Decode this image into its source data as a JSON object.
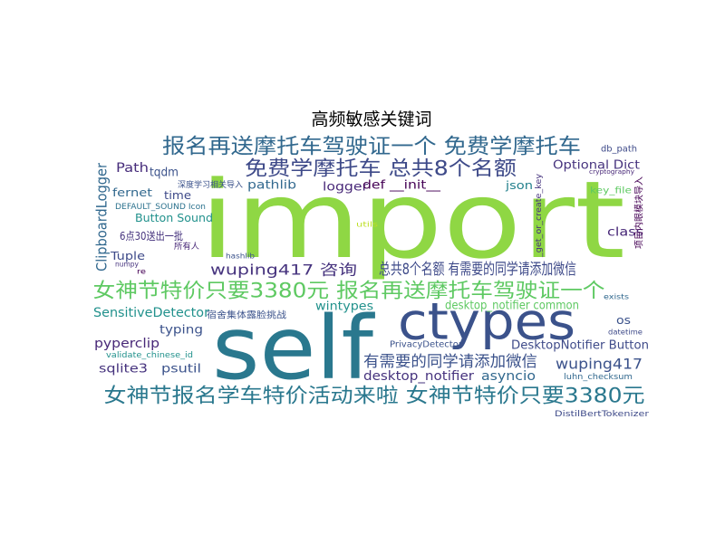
{
  "chart_data": {
    "type": "wordcloud",
    "title": "高频敏感关键词",
    "words": [
      {
        "text": "import",
        "color": "#8fd744"
      },
      {
        "text": "self",
        "color": "#2a788e"
      },
      {
        "text": "ctypes",
        "color": "#3b528b"
      },
      {
        "text": "报名再送摩托车驾驶证一个 免费学摩托车",
        "color": "#31688e"
      },
      {
        "text": "免费学摩托车 总共8个名额",
        "color": "#3e4a89"
      },
      {
        "text": "女神节特价只要3380元 报名再送摩托车驾驶证一个",
        "color": "#5ec962"
      },
      {
        "text": "女神节报名学车特价活动来啦 女神节特价只要3380元",
        "color": "#2a788e"
      },
      {
        "text": "有需要的同学请添加微信",
        "color": "#3b528b"
      },
      {
        "text": "总共8个名额 有需要的同学请添加微信",
        "color": "#3e4a89"
      },
      {
        "text": "wuping417 咨询",
        "color": "#46337e"
      },
      {
        "text": "ClipboardLogger",
        "color": "#31688e"
      },
      {
        "text": "SensitiveDetector",
        "color": "#21918c"
      },
      {
        "text": "DesktopNotifier Button",
        "color": "#3e4a89"
      },
      {
        "text": "desktop_notifier common",
        "color": "#5ec962"
      },
      {
        "text": "desktop_notifier",
        "color": "#46337e"
      },
      {
        "text": "asyncio",
        "color": "#31688e"
      },
      {
        "text": "wuping417",
        "color": "#3b528b"
      },
      {
        "text": "pyperclip",
        "color": "#482878"
      },
      {
        "text": "psutil",
        "color": "#3b528b"
      },
      {
        "text": "sqlite3",
        "color": "#46337e"
      },
      {
        "text": "typing",
        "color": "#3b528b"
      },
      {
        "text": "wintypes",
        "color": "#21918c"
      },
      {
        "text": "os",
        "color": "#3b528b"
      },
      {
        "text": "Optional Dict",
        "color": "#46337e"
      },
      {
        "text": "class",
        "color": "#482878"
      },
      {
        "text": "json",
        "color": "#26828e"
      },
      {
        "text": "logger",
        "color": "#482878"
      },
      {
        "text": "def __init__",
        "color": "#440154"
      },
      {
        "text": "pathlib",
        "color": "#31688e"
      },
      {
        "text": "Path",
        "color": "#472d7b"
      },
      {
        "text": "tqdm",
        "color": "#3b528b"
      },
      {
        "text": "fernet",
        "color": "#31688e"
      },
      {
        "text": "time",
        "color": "#3e4a89"
      },
      {
        "text": "Button Sound",
        "color": "#21918c"
      },
      {
        "text": "DEFAULT_SOUND Icon",
        "color": "#2c728e"
      },
      {
        "text": "6点30送出一批",
        "color": "#46337e"
      },
      {
        "text": "Tuple",
        "color": "#3e4a89"
      },
      {
        "text": "所有人",
        "color": "#482878"
      },
      {
        "text": "深度学习相关导入",
        "color": "#3b528b"
      },
      {
        "text": "key_file",
        "color": "#5ec962"
      },
      {
        "text": "db_path",
        "color": "#3e4a89"
      },
      {
        "text": "项目内眼模块导入",
        "color": "#440154"
      },
      {
        "text": "DistilBertTokenizer",
        "color": "#3e4a89"
      },
      {
        "text": "PrivacyDetector",
        "color": "#3b528b"
      },
      {
        "text": "luhn_checksum",
        "color": "#31688e"
      },
      {
        "text": "宿舍集体露脸挑战",
        "color": "#3b528b"
      },
      {
        "text": "numpy",
        "color": "#46337e"
      },
      {
        "text": "re",
        "color": "#440154"
      },
      {
        "text": "validate_chinese_id",
        "color": "#21918c"
      },
      {
        "text": "hashlib",
        "color": "#3b528b"
      },
      {
        "text": "utils",
        "color": "#bddf26"
      },
      {
        "text": "_get_or_create_key",
        "color": "#46337e"
      },
      {
        "text": "datetime",
        "color": "#3e4a89"
      },
      {
        "text": "exists",
        "color": "#31688e"
      },
      {
        "text": "cryptography",
        "color": "#482878"
      }
    ]
  }
}
